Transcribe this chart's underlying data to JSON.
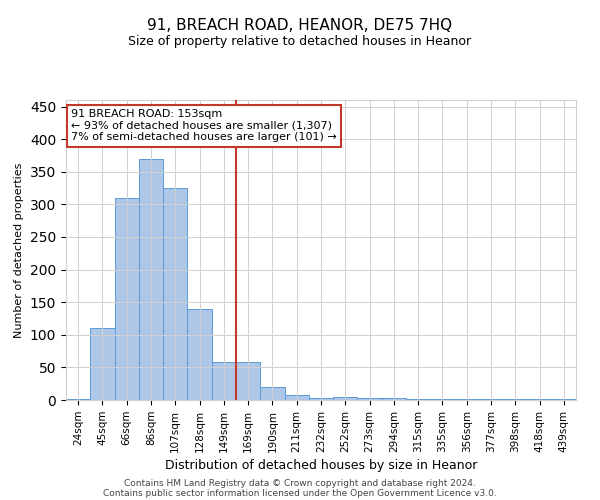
{
  "title": "91, BREACH ROAD, HEANOR, DE75 7HQ",
  "subtitle": "Size of property relative to detached houses in Heanor",
  "xlabel": "Distribution of detached houses by size in Heanor",
  "ylabel": "Number of detached properties",
  "footer_line1": "Contains HM Land Registry data © Crown copyright and database right 2024.",
  "footer_line2": "Contains public sector information licensed under the Open Government Licence v3.0.",
  "annotation_title": "91 BREACH ROAD: 153sqm",
  "annotation_line1": "← 93% of detached houses are smaller (1,307)",
  "annotation_line2": "7% of semi-detached houses are larger (101) →",
  "bar_categories": [
    "24sqm",
    "45sqm",
    "66sqm",
    "86sqm",
    "107sqm",
    "128sqm",
    "149sqm",
    "169sqm",
    "190sqm",
    "211sqm",
    "232sqm",
    "252sqm",
    "273sqm",
    "294sqm",
    "315sqm",
    "335sqm",
    "356sqm",
    "377sqm",
    "398sqm",
    "418sqm",
    "439sqm"
  ],
  "bar_values": [
    2,
    110,
    310,
    370,
    325,
    140,
    58,
    58,
    20,
    8,
    3,
    5,
    3,
    3,
    2,
    1,
    1,
    1,
    1,
    1,
    2
  ],
  "bar_color": "#aec6e8",
  "bar_edge_color": "#5b9bd5",
  "vline_color": "#c0392b",
  "vline_x": 6.5,
  "ylim": [
    0,
    460
  ],
  "yticks": [
    0,
    50,
    100,
    150,
    200,
    250,
    300,
    350,
    400,
    450
  ],
  "grid_color": "#d0d0d0",
  "background_color": "#ffffff",
  "annotation_box_color": "#ffffff",
  "annotation_box_edge": "#c0392b",
  "title_fontsize": 11,
  "subtitle_fontsize": 9,
  "ylabel_fontsize": 8,
  "xlabel_fontsize": 9,
  "tick_fontsize": 7.5,
  "footer_fontsize": 6.5
}
